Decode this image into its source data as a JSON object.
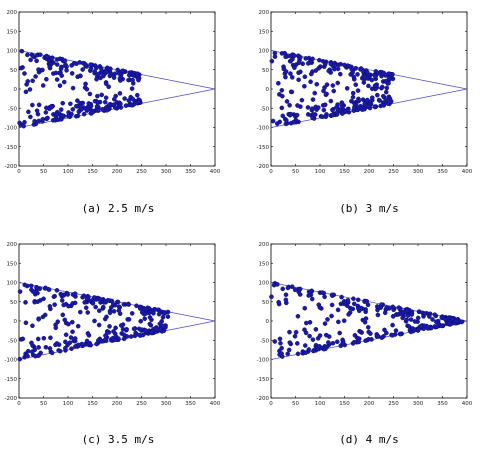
{
  "figure": {
    "captions": [
      "(a) 2.5 m/s",
      "(b) 3 m/s",
      "(c) 3.5 m/s",
      "(d) 4 m/s"
    ]
  },
  "colors": {
    "points": "#1a1aa8",
    "point_edge": "#0a0a6a",
    "wedge_line": "#4a4ad0",
    "axes": "#000000"
  },
  "chart_data": [
    {
      "type": "scatter",
      "title": "",
      "caption": "(a) 2.5 m/s",
      "xlim": [
        0,
        400
      ],
      "ylim": [
        -200,
        200
      ],
      "xticks": [
        0,
        50,
        100,
        150,
        200,
        250,
        300,
        350,
        400
      ],
      "yticks": [
        -200,
        -150,
        -100,
        -50,
        0,
        50,
        100,
        150,
        200
      ],
      "grid": false,
      "wedge_lines": [
        [
          [
            0,
            100
          ],
          [
            400,
            0
          ]
        ],
        [
          [
            0,
            -100
          ],
          [
            400,
            0
          ]
        ]
      ],
      "scatter_extent_x": [
        0,
        250
      ],
      "approx_point_count": 300
    },
    {
      "type": "scatter",
      "title": "",
      "caption": "(b) 3 m/s",
      "xlim": [
        0,
        400
      ],
      "ylim": [
        -200,
        200
      ],
      "xticks": [
        0,
        50,
        100,
        150,
        200,
        250,
        300,
        350,
        400
      ],
      "yticks": [
        -200,
        -150,
        -100,
        -50,
        0,
        50,
        100,
        150,
        200
      ],
      "grid": false,
      "wedge_lines": [
        [
          [
            0,
            100
          ],
          [
            400,
            0
          ]
        ],
        [
          [
            0,
            -100
          ],
          [
            400,
            0
          ]
        ]
      ],
      "scatter_extent_x": [
        0,
        250
      ],
      "approx_point_count": 300
    },
    {
      "type": "scatter",
      "title": "",
      "caption": "(c) 3.5 m/s",
      "xlim": [
        0,
        400
      ],
      "ylim": [
        -200,
        200
      ],
      "xticks": [
        0,
        50,
        100,
        150,
        200,
        250,
        300,
        350,
        400
      ],
      "yticks": [
        -200,
        -150,
        -100,
        -50,
        0,
        50,
        100,
        150,
        200
      ],
      "grid": false,
      "wedge_lines": [
        [
          [
            0,
            100
          ],
          [
            400,
            0
          ]
        ],
        [
          [
            0,
            -100
          ],
          [
            400,
            0
          ]
        ]
      ],
      "scatter_extent_x": [
        0,
        305
      ],
      "approx_point_count": 300
    },
    {
      "type": "scatter",
      "title": "",
      "caption": "(d) 4 m/s",
      "xlim": [
        0,
        400
      ],
      "ylim": [
        -200,
        200
      ],
      "xticks": [
        0,
        50,
        100,
        150,
        200,
        250,
        300,
        350,
        400
      ],
      "yticks": [
        -200,
        -150,
        -100,
        -50,
        0,
        50,
        100,
        150,
        200
      ],
      "grid": false,
      "wedge_lines": [
        [
          [
            0,
            100
          ],
          [
            400,
            0
          ]
        ],
        [
          [
            0,
            -100
          ],
          [
            400,
            0
          ]
        ]
      ],
      "scatter_extent_x": [
        0,
        390
      ],
      "approx_point_count": 300
    }
  ]
}
